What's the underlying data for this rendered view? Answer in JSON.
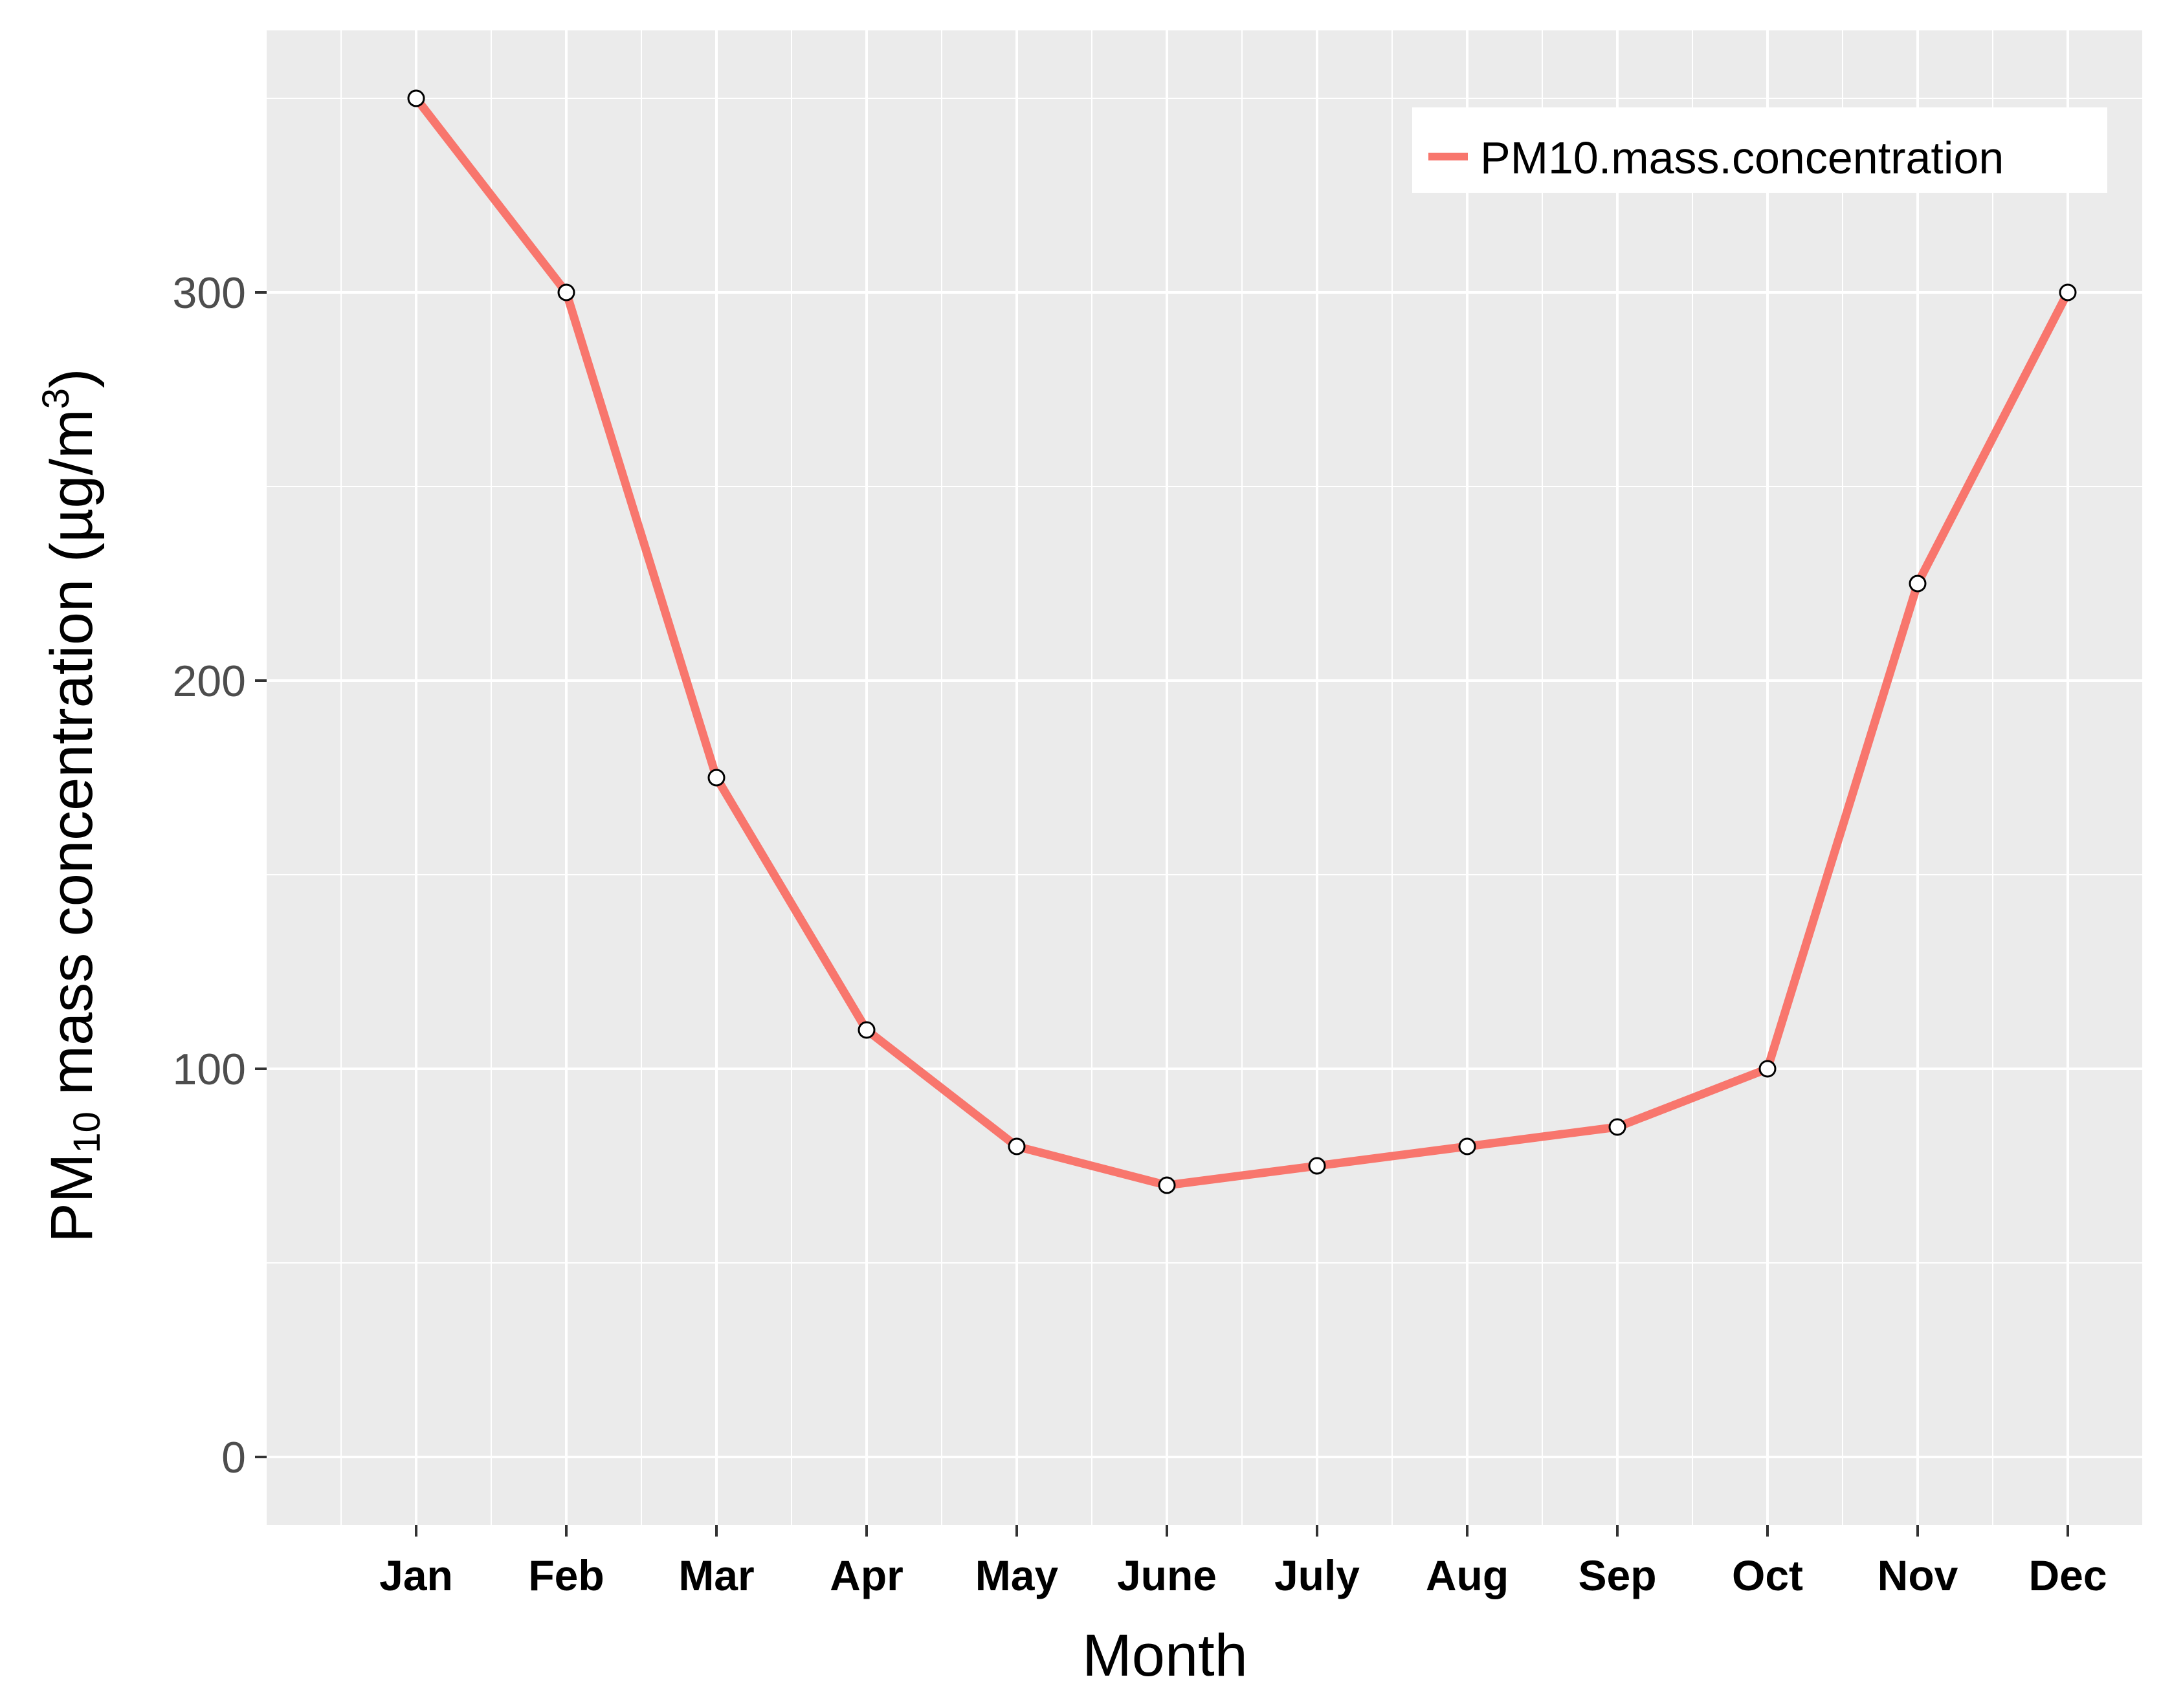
{
  "chart_data": {
    "type": "line",
    "categories": [
      "Jan",
      "Feb",
      "Mar",
      "Apr",
      "May",
      "June",
      "July",
      "Aug",
      "Sep",
      "Oct",
      "Nov",
      "Dec"
    ],
    "series": [
      {
        "name": "PM10.mass.concentration",
        "values": [
          350,
          300,
          175,
          110,
          80,
          70,
          75,
          80,
          85,
          100,
          225,
          300
        ],
        "color": "#f8766d"
      }
    ],
    "xlabel": "Month",
    "ylabel": {
      "prefix": "PM",
      "subscript": "10",
      "middle": " mass concentration  (µg/m",
      "superscript": "3",
      "suffix": ")"
    },
    "yticks": [
      0,
      100,
      200,
      300
    ],
    "ylim": [
      -17.5,
      367.5
    ],
    "grid": true,
    "legend_position": "top-right",
    "panel_background": "#ebebeb",
    "grid_color": "#ffffff",
    "point_fill": "#ffffff",
    "point_stroke": "#000000"
  }
}
